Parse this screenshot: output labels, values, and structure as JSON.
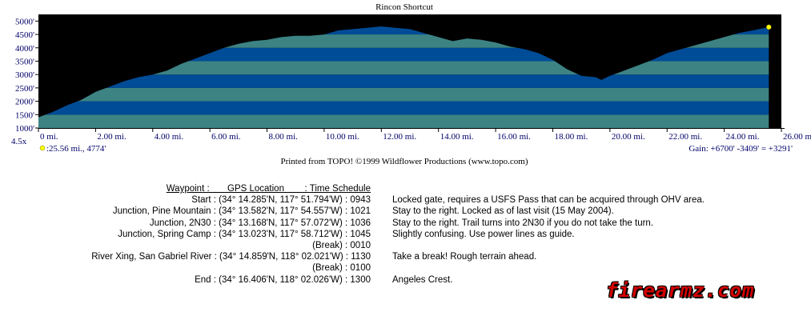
{
  "chart_data": {
    "type": "area",
    "title": "Rincon Shortcut",
    "x_unit": "mi.",
    "x_ticks": [
      "0 mi.",
      "2.00 mi.",
      "4.00 mi.",
      "6.00 mi.",
      "8.00 mi.",
      "10.00 mi.",
      "12.00 mi.",
      "14.00 mi.",
      "16.00 mi.",
      "18.00 mi.",
      "20.00 mi.",
      "22.00 mi.",
      "24.00 mi.",
      "26.00 mi."
    ],
    "y_ticks": [
      "1000'",
      "1500'",
      "2000'",
      "2500'",
      "3000'",
      "3500'",
      "4000'",
      "4500'",
      "5000'"
    ],
    "xlim": [
      0,
      26.0
    ],
    "ylim": [
      1000,
      5250
    ],
    "vertical_exaggeration": "4.5x",
    "cursor_readout": ":25.56 mi., 4774'",
    "gain_summary": "Gain: +6700' -3409' = +3291'",
    "series": [
      {
        "x": [
          0,
          0.5,
          1,
          1.5,
          2,
          2.5,
          3,
          3.5,
          4,
          4.5,
          5,
          5.5,
          6,
          6.5,
          7,
          7.5,
          8,
          8.5,
          9,
          9.5,
          10,
          10.5,
          11,
          11.5,
          12,
          12.5,
          13,
          13.5,
          14,
          14.5,
          15,
          15.5,
          16,
          16.5,
          17,
          17.5,
          18,
          18.5,
          19,
          19.5,
          19.7,
          20,
          20.5,
          21,
          21.5,
          22,
          22.5,
          23,
          23.5,
          24,
          24.5,
          25,
          25.56
        ],
        "y": [
          1400,
          1600,
          1850,
          2050,
          2350,
          2550,
          2750,
          2900,
          3000,
          3150,
          3400,
          3600,
          3800,
          4000,
          4150,
          4250,
          4300,
          4400,
          4450,
          4450,
          4500,
          4650,
          4700,
          4750,
          4800,
          4750,
          4700,
          4550,
          4400,
          4250,
          4350,
          4300,
          4200,
          4050,
          3950,
          3800,
          3550,
          3200,
          2950,
          2900,
          2800,
          2950,
          3150,
          3350,
          3550,
          3800,
          3950,
          4100,
          4250,
          4400,
          4550,
          4650,
          4774
        ]
      }
    ],
    "colors": {
      "background": "#000000",
      "band_dark": "#004c97",
      "band_light": "#3d8384",
      "axis_text": "#00006a",
      "marker": "#ffff00"
    }
  },
  "footer": {
    "credit": "Printed from TOPO! ©1999 Wildflower Productions (www.topo.com)"
  },
  "waypoints": {
    "header": "Waypoint :       GPS Location        : Time Schedule",
    "rows": [
      {
        "text": "Start : (34° 14.285'N, 117° 51.794'W) : 0943",
        "note": "Locked gate, requires a USFS Pass that can be acquired through OHV area."
      },
      {
        "text": "Junction, Pine Mountain : (34° 13.582'N, 117° 54.557'W) : 1021",
        "note": "Stay to the right. Locked as of last visit (15 May 2004)."
      },
      {
        "text": "Junction, 2N30 : (34° 13.168'N, 117° 57.072'W) : 1036",
        "note": "Stay to the right. Trail turns into 2N30 if you do not take the turn."
      },
      {
        "text": "Junction, Spring Camp : (34° 13.023'N, 117° 58.712'W) : 1045",
        "note": "Slightly confusing. Use power lines as guide."
      },
      {
        "text": "(Break) : 0010",
        "note": ""
      },
      {
        "text": "River Xing, San Gabriel River : (34° 14.859'N, 118° 02.021'W) : 1130",
        "note": "Take a break! Rough terrain ahead."
      },
      {
        "text": "(Break) : 0100",
        "note": ""
      },
      {
        "text": "End : (34° 16.406'N, 118° 02.026'W) : 1300",
        "note": "Angeles Crest."
      }
    ]
  },
  "watermark": "firearmz.com"
}
